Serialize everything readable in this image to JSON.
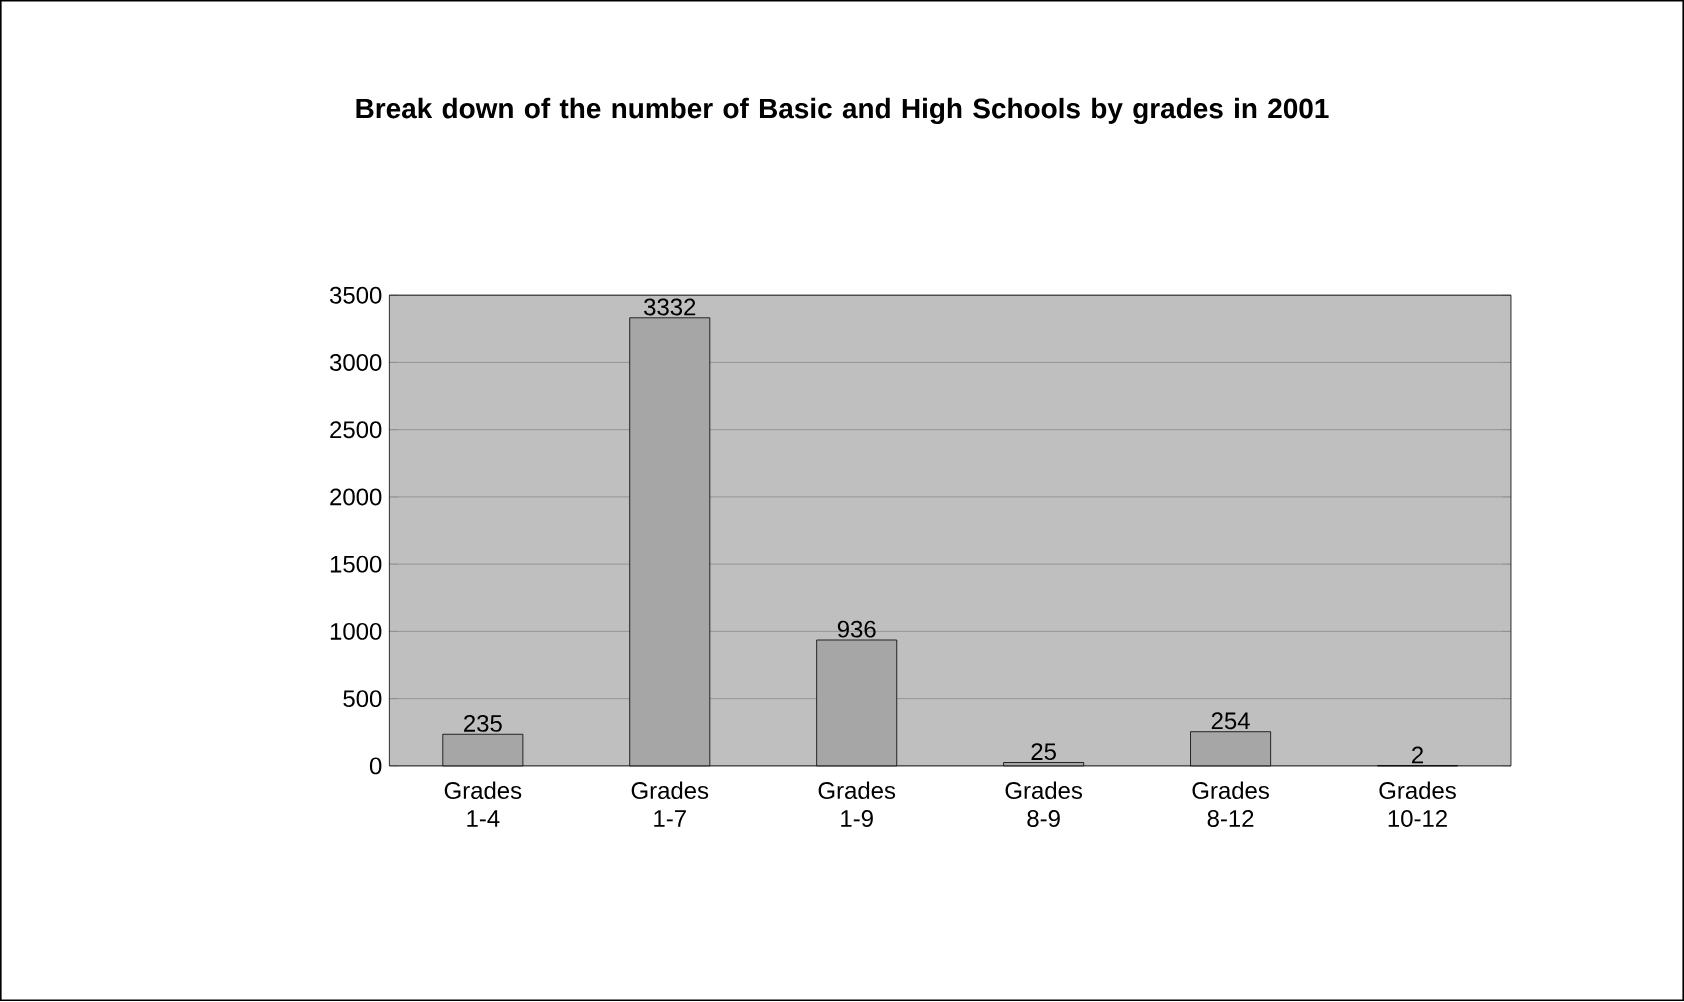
{
  "chart_data": {
    "type": "bar",
    "title": "Break down of the number of Basic and High Schools by grades in 2001",
    "categories": [
      "Grades 1-4",
      "Grades 1-7",
      "Grades 1-9",
      "Grades 8-9",
      "Grades 8-12",
      "Grades 10-12"
    ],
    "values": [
      235,
      3332,
      936,
      25,
      254,
      2
    ],
    "color": "#a6a6a6",
    "ylim": [
      0,
      3500
    ],
    "yticks": [
      0,
      500,
      1000,
      1500,
      2000,
      2500,
      3000,
      3500
    ],
    "grid": "y",
    "data_labels": true
  }
}
